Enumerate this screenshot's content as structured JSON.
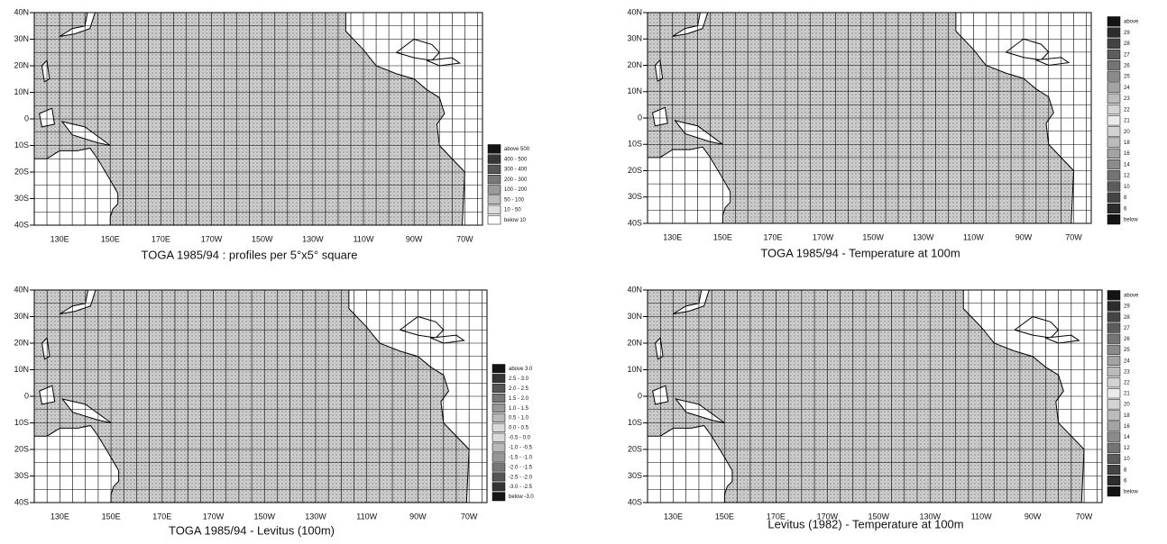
{
  "panels": [
    {
      "title": "TOGA 1985/94 : profiles per 5°x5° square",
      "lat_labels": [
        "40N",
        "30N",
        "20N",
        "10N",
        "0",
        "10S",
        "20S",
        "30S",
        "40S"
      ],
      "lon_labels": [
        "130E",
        "150E",
        "170E",
        "170W",
        "150W",
        "130W",
        "110W",
        "90W",
        "70W"
      ],
      "legend": [
        "above 500",
        "400 - 500",
        "300 - 400",
        "200 - 300",
        "100 - 200",
        "50 - 100",
        "10 - 50",
        "below 10"
      ]
    },
    {
      "title": "TOGA 1985/94 - Temperature at 100m",
      "lat_labels": [
        "40N",
        "30N",
        "20N",
        "10N",
        "0",
        "10S",
        "20S",
        "30S",
        "40S"
      ],
      "lon_labels": [
        "130E",
        "150E",
        "170E",
        "170W",
        "150W",
        "130W",
        "110W",
        "90W",
        "70W"
      ],
      "legend": [
        "above",
        "29",
        "28",
        "27",
        "26",
        "25",
        "24",
        "23",
        "22",
        "21",
        "20",
        "18",
        "16",
        "14",
        "12",
        "10",
        "8",
        "6",
        "below"
      ]
    },
    {
      "title": "TOGA 1985/94 - Levitus (100m)",
      "lat_labels": [
        "40N",
        "30N",
        "20N",
        "10N",
        "0",
        "10S",
        "20S",
        "30S",
        "40S"
      ],
      "lon_labels": [
        "130E",
        "150E",
        "170E",
        "170W",
        "150W",
        "130W",
        "110W",
        "90W",
        "70W"
      ],
      "legend": [
        "above 3.0",
        "2.5 - 3.0",
        "2.0 - 2.5",
        "1.5 - 2.0",
        "1.0 - 1.5",
        "0.5 - 1.0",
        "0.0 - 0.5",
        "-0.5 - 0.0",
        "-1.0 - -0.5",
        "-1.5 - -1.0",
        "-2.0 - -1.5",
        "-2.5 - -2.0",
        "-3.0 - -2.5",
        "below -3.0"
      ]
    },
    {
      "title": "Levitus (1982) - Temperature at 100m",
      "lat_labels": [
        "40N",
        "30N",
        "20N",
        "10N",
        "0",
        "10S",
        "20S",
        "30S",
        "40S"
      ],
      "lon_labels": [
        "130E",
        "150E",
        "170E",
        "170W",
        "150W",
        "130W",
        "110W",
        "90W",
        "70W"
      ],
      "legend": [
        "above",
        "29",
        "28",
        "27",
        "26",
        "25",
        "24",
        "23",
        "22",
        "21",
        "20",
        "18",
        "16",
        "14",
        "12",
        "10",
        "8",
        "6",
        "below"
      ]
    }
  ]
}
